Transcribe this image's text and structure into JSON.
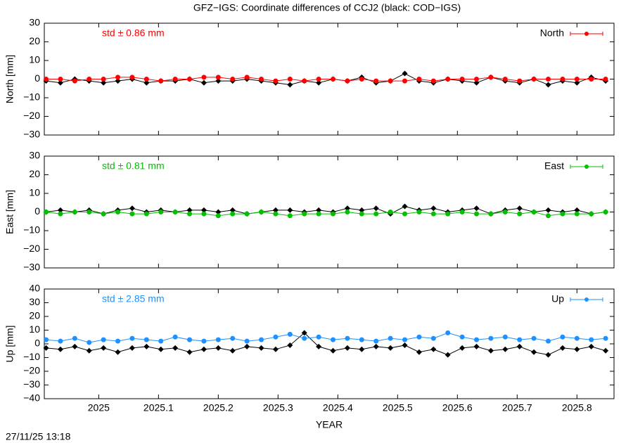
{
  "title": "GFZ−IGS: Coordinate differences of CCJ2 (black: COD−IGS)",
  "xlabel": "YEAR",
  "footer": "27/11/25 13:18",
  "chart_data": [
    {
      "type": "line",
      "ylabel": "North [mm]",
      "annotation": "std ± 0.86 mm",
      "annotation_color": "#ff0000",
      "legend": "upper right",
      "xlim": [
        2024.909,
        2025.862
      ],
      "xticks": [
        2025,
        2025.1,
        2025.2,
        2025.3,
        2025.4,
        2025.5,
        2025.6,
        2025.7,
        2025.8
      ],
      "ylim": [
        -30,
        30
      ],
      "yticks": [
        {
          "value": -30,
          "label": "−30"
        },
        {
          "value": -20,
          "label": "−20"
        },
        {
          "value": -10,
          "label": "−10"
        },
        0,
        10,
        20,
        30
      ],
      "x": [
        2024.912,
        2024.936,
        2024.96,
        2024.984,
        2025.008,
        2025.032,
        2025.056,
        2025.08,
        2025.104,
        2025.128,
        2025.152,
        2025.176,
        2025.2,
        2025.224,
        2025.248,
        2025.272,
        2025.296,
        2025.32,
        2025.344,
        2025.368,
        2025.392,
        2025.416,
        2025.44,
        2025.464,
        2025.488,
        2025.512,
        2025.536,
        2025.56,
        2025.584,
        2025.608,
        2025.632,
        2025.656,
        2025.68,
        2025.704,
        2025.728,
        2025.752,
        2025.776,
        2025.8,
        2025.824,
        2025.848
      ],
      "series": [
        {
          "color": "#000000",
          "values": [
            -1,
            -2,
            0,
            -1,
            -2,
            -1,
            0,
            -2,
            -1,
            -1,
            0,
            -2,
            -1,
            -1,
            0,
            -1,
            -2,
            -3,
            -1,
            -2,
            0,
            -1,
            1,
            -2,
            -1,
            3,
            -1,
            -2,
            0,
            -1,
            -2,
            1,
            -1,
            -2,
            0,
            -3,
            -1,
            -2,
            1,
            -1
          ]
        },
        {
          "name": "North",
          "color": "#ff0000",
          "values": [
            0,
            0,
            -1,
            0,
            0,
            1,
            1,
            0,
            -1,
            0,
            0,
            1,
            1,
            0,
            1,
            0,
            -1,
            0,
            -1,
            0,
            0,
            -1,
            0,
            -1,
            -1,
            -1,
            0,
            -1,
            0,
            0,
            0,
            1,
            0,
            -1,
            0,
            0,
            0,
            0,
            0,
            0
          ]
        }
      ]
    },
    {
      "type": "line",
      "ylabel": "East [mm]",
      "annotation": "std ± 0.81 mm",
      "annotation_color": "#00c000",
      "legend": "upper right",
      "xlim": [
        2024.909,
        2025.862
      ],
      "xticks": [
        2025,
        2025.1,
        2025.2,
        2025.3,
        2025.4,
        2025.5,
        2025.6,
        2025.7,
        2025.8
      ],
      "ylim": [
        -30,
        30
      ],
      "yticks": [
        {
          "value": -30,
          "label": "−30"
        },
        {
          "value": -20,
          "label": "−20"
        },
        {
          "value": -10,
          "label": "−10"
        },
        0,
        10,
        20,
        30
      ],
      "x": [
        2024.912,
        2024.936,
        2024.96,
        2024.984,
        2025.008,
        2025.032,
        2025.056,
        2025.08,
        2025.104,
        2025.128,
        2025.152,
        2025.176,
        2025.2,
        2025.224,
        2025.248,
        2025.272,
        2025.296,
        2025.32,
        2025.344,
        2025.368,
        2025.392,
        2025.416,
        2025.44,
        2025.464,
        2025.488,
        2025.512,
        2025.536,
        2025.56,
        2025.584,
        2025.608,
        2025.632,
        2025.656,
        2025.68,
        2025.704,
        2025.728,
        2025.752,
        2025.776,
        2025.8,
        2025.824,
        2025.848
      ],
      "series": [
        {
          "color": "#000000",
          "values": [
            0,
            1,
            0,
            1,
            -1,
            1,
            2,
            0,
            1,
            0,
            1,
            1,
            0,
            1,
            -1,
            0,
            1,
            1,
            0,
            1,
            0,
            2,
            1,
            2,
            -1,
            3,
            1,
            2,
            0,
            1,
            2,
            -1,
            1,
            2,
            0,
            1,
            0,
            1,
            -1,
            0
          ]
        },
        {
          "name": "East",
          "color": "#00c000",
          "values": [
            0,
            -1,
            0,
            0,
            -1,
            0,
            -1,
            -1,
            0,
            0,
            -1,
            -1,
            -2,
            -1,
            -1,
            0,
            -1,
            -2,
            -1,
            -1,
            -1,
            0,
            -1,
            -1,
            0,
            -1,
            0,
            -1,
            -1,
            0,
            -1,
            -1,
            0,
            -1,
            0,
            -2,
            -1,
            -1,
            -1,
            0
          ]
        }
      ]
    },
    {
      "type": "line",
      "ylabel": "Up [mm]",
      "annotation": "std ± 2.85 mm",
      "annotation_color": "#1e90ff",
      "legend": "upper right",
      "xlim": [
        2024.909,
        2025.862
      ],
      "xticks": [
        2025,
        2025.1,
        2025.2,
        2025.3,
        2025.4,
        2025.5,
        2025.6,
        2025.7,
        2025.8
      ],
      "ylim": [
        -40,
        40
      ],
      "yticks": [
        {
          "value": -40,
          "label": "−40"
        },
        {
          "value": -30,
          "label": "−30"
        },
        {
          "value": -20,
          "label": "−20"
        },
        {
          "value": -10,
          "label": "−10"
        },
        0,
        10,
        20,
        30,
        40
      ],
      "x": [
        2024.912,
        2024.936,
        2024.96,
        2024.984,
        2025.008,
        2025.032,
        2025.056,
        2025.08,
        2025.104,
        2025.128,
        2025.152,
        2025.176,
        2025.2,
        2025.224,
        2025.248,
        2025.272,
        2025.296,
        2025.32,
        2025.344,
        2025.368,
        2025.392,
        2025.416,
        2025.44,
        2025.464,
        2025.488,
        2025.512,
        2025.536,
        2025.56,
        2025.584,
        2025.608,
        2025.632,
        2025.656,
        2025.68,
        2025.704,
        2025.728,
        2025.752,
        2025.776,
        2025.8,
        2025.824,
        2025.848
      ],
      "series": [
        {
          "color": "#000000",
          "values": [
            -3,
            -4,
            -2,
            -5,
            -3,
            -6,
            -3,
            -2,
            -4,
            -3,
            -6,
            -4,
            -3,
            -5,
            -2,
            -3,
            -4,
            -1,
            8,
            -2,
            -5,
            -3,
            -4,
            -2,
            -3,
            -1,
            -6,
            -4,
            -8,
            -3,
            -2,
            -5,
            -4,
            -2,
            -6,
            -8,
            -3,
            -4,
            -2,
            -5
          ]
        },
        {
          "name": "Up",
          "color": "#1e90ff",
          "values": [
            3,
            2,
            4,
            1,
            3,
            2,
            4,
            3,
            2,
            5,
            3,
            2,
            3,
            4,
            2,
            3,
            5,
            7,
            4,
            5,
            3,
            4,
            3,
            2,
            4,
            3,
            5,
            4,
            8,
            5,
            3,
            4,
            5,
            3,
            4,
            2,
            5,
            4,
            3,
            4
          ]
        }
      ]
    }
  ]
}
